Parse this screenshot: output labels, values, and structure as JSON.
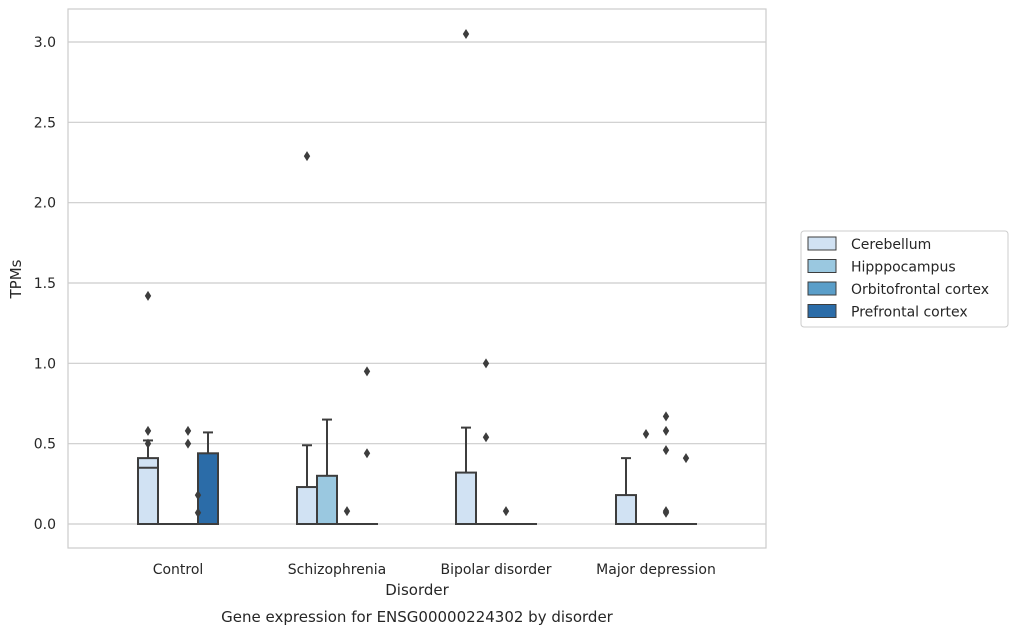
{
  "chart_data": {
    "type": "box",
    "title": "Gene expression for ENSG00000224302 by disorder",
    "xlabel": "Disorder",
    "ylabel": "TPMs",
    "categories": [
      "Control",
      "Schizophrenia",
      "Bipolar disorder",
      "Major depression"
    ],
    "ylim": [
      -0.15,
      3.2
    ],
    "yticks": [
      0.0,
      0.5,
      1.0,
      1.5,
      2.0,
      2.5,
      3.0
    ],
    "ytick_labels": [
      "0.0",
      "0.5",
      "1.0",
      "1.5",
      "2.0",
      "2.5",
      "3.0"
    ],
    "grid": "horizontal",
    "legend": {
      "placement": "right"
    },
    "series": [
      {
        "name": "Cerebellum",
        "color": "#d1e2f3",
        "boxes": [
          {
            "q1": 0.0,
            "median": 0.35,
            "q3": 0.41,
            "whislo": 0.0,
            "whishi": 0.52,
            "fliers": [
              1.42,
              0.58,
              0.5
            ]
          },
          {
            "q1": 0.0,
            "median": 0.0,
            "q3": 0.23,
            "whislo": 0.0,
            "whishi": 0.49,
            "fliers": [
              2.29
            ]
          },
          {
            "q1": 0.0,
            "median": 0.0,
            "q3": 0.32,
            "whislo": 0.0,
            "whishi": 0.6,
            "fliers": [
              3.05
            ]
          },
          {
            "q1": 0.0,
            "median": 0.0,
            "q3": 0.18,
            "whislo": 0.0,
            "whishi": 0.41,
            "fliers": []
          }
        ]
      },
      {
        "name": "Hipppocampus",
        "color": "#9ac8e0",
        "boxes": [
          {
            "q1": 0.0,
            "median": 0.0,
            "q3": 0.0,
            "whislo": 0.0,
            "whishi": 0.0,
            "fliers": []
          },
          {
            "q1": 0.0,
            "median": 0.0,
            "q3": 0.3,
            "whislo": 0.0,
            "whishi": 0.65,
            "fliers": []
          },
          {
            "q1": 0.0,
            "median": 0.0,
            "q3": 0.0,
            "whislo": 0.0,
            "whishi": 0.0,
            "fliers": [
              1.0,
              0.54
            ]
          },
          {
            "q1": 0.0,
            "median": 0.0,
            "q3": 0.0,
            "whislo": 0.0,
            "whishi": 0.0,
            "fliers": [
              0.56
            ]
          }
        ]
      },
      {
        "name": "Orbitofrontal cortex",
        "color": "#5a9ec9",
        "boxes": [
          {
            "q1": 0.0,
            "median": 0.0,
            "q3": 0.0,
            "whislo": 0.0,
            "whishi": 0.0,
            "fliers": [
              0.58,
              0.5
            ]
          },
          {
            "q1": 0.0,
            "median": 0.0,
            "q3": 0.0,
            "whislo": 0.0,
            "whishi": 0.0,
            "fliers": [
              0.08
            ]
          },
          {
            "q1": 0.0,
            "median": 0.0,
            "q3": 0.0,
            "whislo": 0.0,
            "whishi": 0.0,
            "fliers": [
              0.08
            ]
          },
          {
            "q1": 0.0,
            "median": 0.0,
            "q3": 0.0,
            "whislo": 0.0,
            "whishi": 0.0,
            "fliers": [
              0.67,
              0.58,
              0.46
            ]
          }
        ]
      },
      {
        "name": "Prefrontal cortex",
        "color": "#2b6ca8",
        "boxes": [
          {
            "q1": 0.0,
            "median": 0.0,
            "q3": 0.44,
            "whislo": 0.0,
            "whishi": 0.57,
            "fliers": []
          },
          {
            "q1": 0.0,
            "median": 0.0,
            "q3": 0.0,
            "whislo": 0.0,
            "whishi": 0.0,
            "fliers": [
              0.95,
              0.44
            ]
          },
          {
            "q1": 0.0,
            "median": 0.0,
            "q3": 0.0,
            "whislo": 0.0,
            "whishi": 0.0,
            "fliers": []
          },
          {
            "q1": 0.0,
            "median": 0.0,
            "q3": 0.0,
            "whislo": 0.0,
            "whishi": 0.0,
            "fliers": [
              0.41
            ]
          }
        ]
      }
    ],
    "extra_fliers": [
      {
        "category": "Control",
        "between": [
          "Orbitofrontal cortex",
          "Prefrontal cortex"
        ],
        "series": "Orbitofrontal cortex",
        "values": [
          0.18,
          0.07
        ]
      },
      {
        "category": "Major depression",
        "series": "Orbitofrontal cortex",
        "values": [
          0.08,
          0.07
        ]
      }
    ]
  }
}
